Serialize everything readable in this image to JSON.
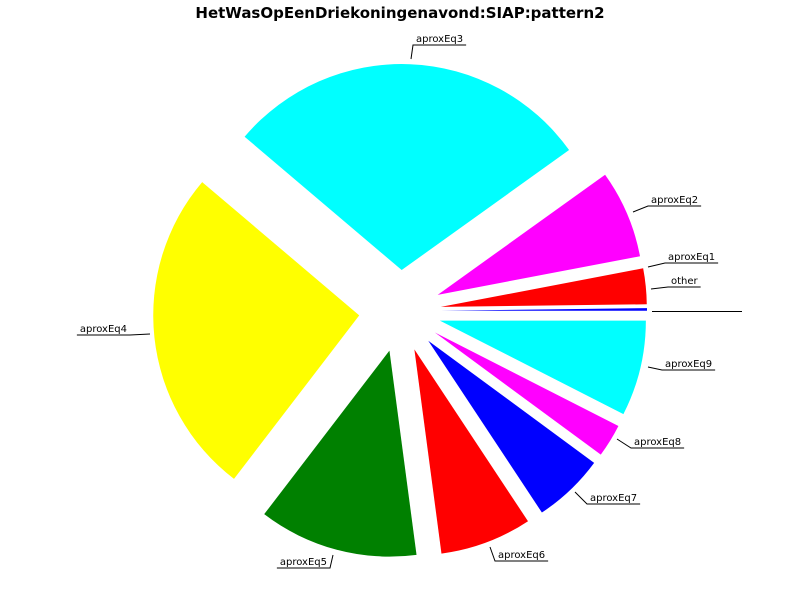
{
  "chart_data": {
    "type": "pie",
    "title": "HetWasOpEenDriekoningenavond:SIAP:pattern2",
    "direction": "counterclockwise",
    "exploded": true,
    "labels": [
      "other",
      "aproxEq1",
      "aproxEq2",
      "aproxEq3",
      "aproxEq4",
      "aproxEq5",
      "aproxEq6",
      "aproxEq7",
      "aproxEq8",
      "aproxEq9"
    ],
    "values": [
      0.2,
      2.8,
      6.9,
      28.9,
      25.8,
      12.5,
      7.2,
      5.6,
      2.6,
      7.5
    ],
    "colors": [
      "#0000ff",
      "#ff0000",
      "#ff00ff",
      "#00ffff",
      "#ffff00",
      "#008000",
      "#ff0000",
      "#0000ff",
      "#ff00ff",
      "#00ffff"
    ]
  }
}
